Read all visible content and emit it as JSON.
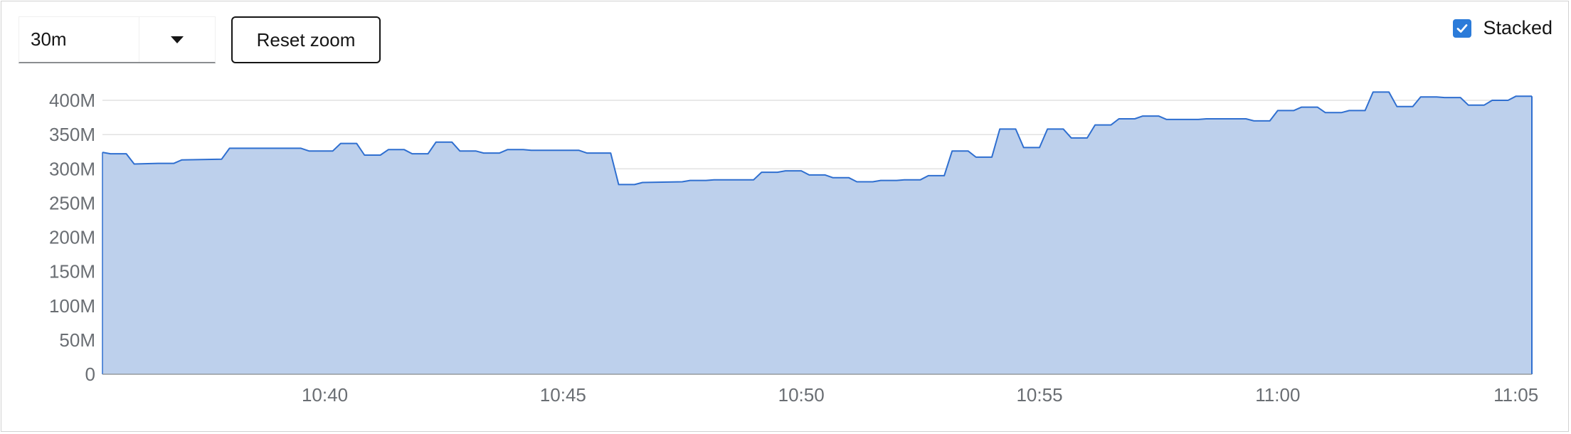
{
  "controls": {
    "timespan_value": "30m",
    "reset_zoom_label": "Reset zoom",
    "stacked_label": "Stacked",
    "stacked_checked": true
  },
  "colors": {
    "area_fill": "#bdd0ec",
    "area_line": "#2f6fd0",
    "grid": "#dcdcdc",
    "checkbox": "#2b7bd9"
  },
  "chart_data": {
    "type": "area",
    "stacked": true,
    "title": "",
    "xlabel": "",
    "ylabel": "",
    "x_range": [
      "10:35:20",
      "11:05:20"
    ],
    "ylim": [
      0,
      400000000
    ],
    "y_ticks": [
      0,
      50000000,
      100000000,
      150000000,
      200000000,
      250000000,
      300000000,
      350000000,
      400000000
    ],
    "y_tick_labels": [
      "0",
      "50M",
      "100M",
      "150M",
      "200M",
      "250M",
      "300M",
      "350M",
      "400M"
    ],
    "x_ticks": [
      "10:40",
      "10:45",
      "10:50",
      "10:55",
      "11:00",
      "11:05"
    ],
    "grid": true,
    "legend": "none",
    "series": [
      {
        "x": [
          "10:35:20",
          "10:35:30",
          "10:35:50",
          "10:36:00",
          "10:36:30",
          "10:36:50",
          "10:37:00",
          "10:37:50",
          "10:38:00",
          "10:38:40",
          "10:38:50",
          "10:39:30",
          "10:39:40",
          "10:40:10",
          "10:40:20",
          "10:40:40",
          "10:40:50",
          "10:41:10",
          "10:41:20",
          "10:41:40",
          "10:41:50",
          "10:42:10",
          "10:42:20",
          "10:42:40",
          "10:42:50",
          "10:43:10",
          "10:43:20",
          "10:43:40",
          "10:43:50",
          "10:44:10",
          "10:44:20",
          "10:44:30",
          "10:45:20",
          "10:45:30",
          "10:46:00",
          "10:46:10",
          "10:46:30",
          "10:46:40",
          "10:47:30",
          "10:47:40",
          "10:48:00",
          "10:48:10",
          "10:49:00",
          "10:49:10",
          "10:49:30",
          "10:49:40",
          "10:50:00",
          "10:50:10",
          "10:50:30",
          "10:50:40",
          "10:51:00",
          "10:51:10",
          "10:51:30",
          "10:51:40",
          "10:52:00",
          "10:52:10",
          "10:52:30",
          "10:52:40",
          "10:53:00",
          "10:53:10",
          "10:53:30",
          "10:53:40",
          "10:54:00",
          "10:54:10",
          "10:54:30",
          "10:54:40",
          "10:55:00",
          "10:55:10",
          "10:55:30",
          "10:55:40",
          "10:56:00",
          "10:56:10",
          "10:56:30",
          "10:56:40",
          "10:57:00",
          "10:57:10",
          "10:57:30",
          "10:57:40",
          "10:58:20",
          "10:58:30",
          "10:59:20",
          "10:59:30",
          "10:59:50",
          "11:00:00",
          "11:00:20",
          "11:00:30",
          "11:00:50",
          "11:01:00",
          "11:01:20",
          "11:01:30",
          "11:01:50",
          "11:02:00",
          "11:02:20",
          "11:02:30",
          "11:02:50",
          "11:03:00",
          "11:03:20",
          "11:03:30",
          "11:03:50",
          "11:04:00",
          "11:04:20",
          "11:04:30",
          "11:04:50",
          "11:05:00",
          "11:05:20"
        ],
        "values": [
          324000000,
          322000000,
          322000000,
          307000000,
          308000000,
          308000000,
          313000000,
          314000000,
          330000000,
          330000000,
          330000000,
          330000000,
          326000000,
          326000000,
          337000000,
          337000000,
          320000000,
          320000000,
          328000000,
          328000000,
          322000000,
          322000000,
          339000000,
          339000000,
          326000000,
          326000000,
          323000000,
          323000000,
          328000000,
          328000000,
          327000000,
          327000000,
          327000000,
          323000000,
          323000000,
          277000000,
          277000000,
          280000000,
          281000000,
          283000000,
          283000000,
          284000000,
          284000000,
          295000000,
          295000000,
          297000000,
          297000000,
          291000000,
          291000000,
          287000000,
          287000000,
          281000000,
          281000000,
          283000000,
          283000000,
          284000000,
          284000000,
          290000000,
          290000000,
          326000000,
          326000000,
          317000000,
          317000000,
          358000000,
          358000000,
          331000000,
          331000000,
          358000000,
          358000000,
          345000000,
          345000000,
          364000000,
          364000000,
          373000000,
          373000000,
          377000000,
          377000000,
          372000000,
          372000000,
          373000000,
          373000000,
          370000000,
          370000000,
          385000000,
          385000000,
          390000000,
          390000000,
          382000000,
          382000000,
          385000000,
          385000000,
          412000000,
          412000000,
          391000000,
          391000000,
          405000000,
          405000000,
          404000000,
          404000000,
          393000000,
          393000000,
          400000000,
          400000000,
          406000000,
          406000000
        ]
      }
    ]
  }
}
